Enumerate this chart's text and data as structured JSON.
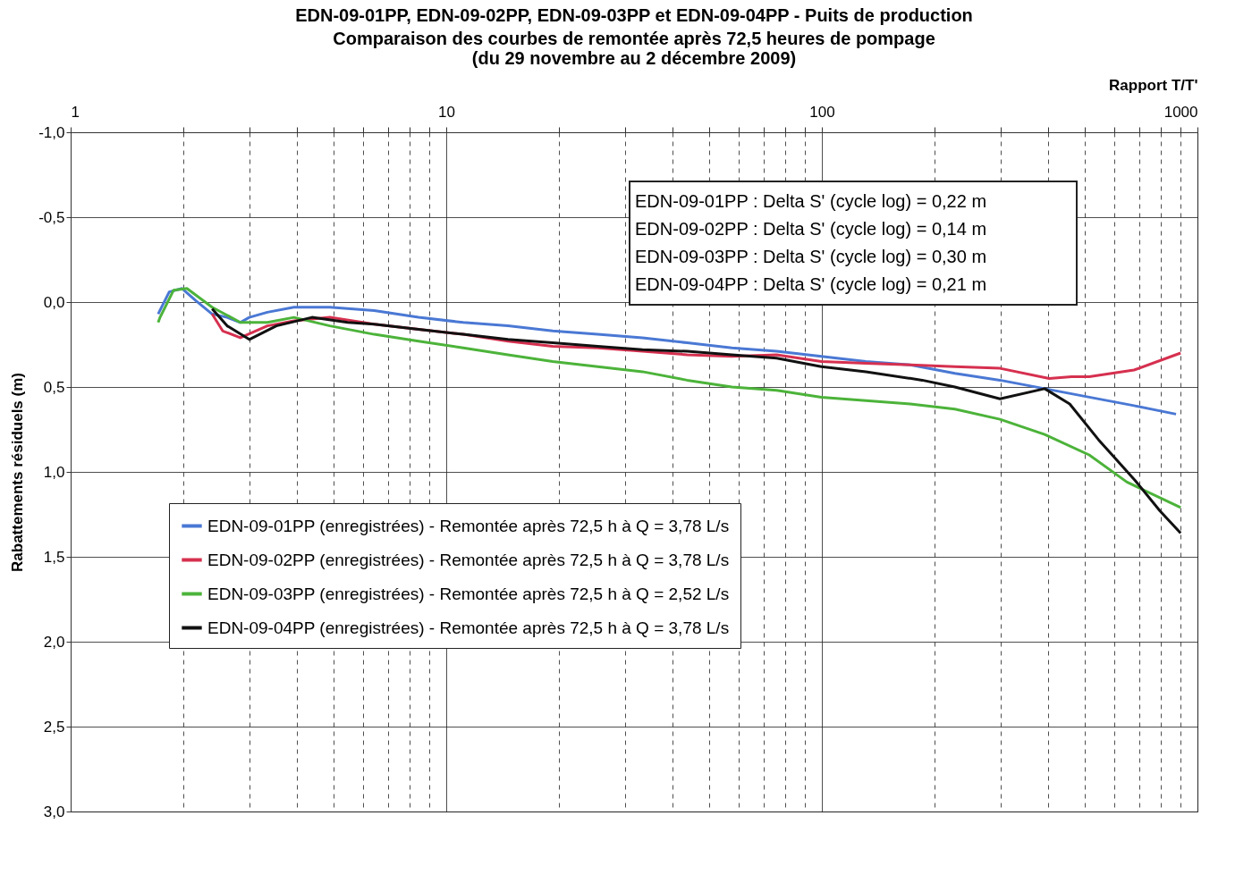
{
  "chart_data": {
    "type": "line",
    "title": "EDN-09-01PP, EDN-09-02PP, EDN-09-03PP et EDN-09-04PP - Puits de production",
    "subtitle": "Comparaison des courbes de remontée après 72,5 heures de pompage\n(du 29 novembre au 2 décembre 2009)",
    "xlabel": "Rapport T/T'",
    "ylabel": "Rabattements résiduels (m)",
    "log": "x",
    "xlim": [
      1,
      1000
    ],
    "xticks": [
      1,
      {
        "value": 2,
        "label": null
      },
      {
        "value": 3,
        "label": null
      },
      {
        "value": 4,
        "label": null
      },
      {
        "value": 5,
        "label": null
      },
      {
        "value": 6,
        "label": null
      },
      {
        "value": 7,
        "label": null
      },
      {
        "value": 8,
        "label": null
      },
      {
        "value": 9,
        "label": null
      },
      10,
      {
        "value": 20,
        "label": null
      },
      {
        "value": 30,
        "label": null
      },
      {
        "value": 40,
        "label": null
      },
      {
        "value": 50,
        "label": null
      },
      {
        "value": 60,
        "label": null
      },
      {
        "value": 70,
        "label": null
      },
      {
        "value": 80,
        "label": null
      },
      {
        "value": 90,
        "label": null
      },
      100,
      {
        "value": 200,
        "label": null
      },
      {
        "value": 300,
        "label": null
      },
      {
        "value": 400,
        "label": null
      },
      {
        "value": 500,
        "label": null
      },
      {
        "value": 600,
        "label": null
      },
      {
        "value": 700,
        "label": null
      },
      {
        "value": 800,
        "label": null
      },
      {
        "value": 900,
        "label": null
      },
      1000
    ],
    "ylim": [
      3.0,
      -1.0
    ],
    "yticks": [
      {
        "value": -1,
        "label": "-1,0"
      },
      {
        "value": -0.5,
        "label": "-0,5"
      },
      {
        "value": 0,
        "label": "0,0"
      },
      {
        "value": 0.5,
        "label": "0,5"
      },
      {
        "value": 1,
        "label": "1,0"
      },
      {
        "value": 1.5,
        "label": "1,5"
      },
      {
        "value": 2,
        "label": "2,0"
      },
      {
        "value": 2.5,
        "label": "2,5"
      },
      {
        "value": 3,
        "label": "3,0"
      }
    ],
    "grid": true,
    "legend": "bottom left",
    "annotations": [
      "EDN-09-01PP : Delta S' (cycle log) = 0,22 m",
      "EDN-09-02PP : Delta S' (cycle log) = 0,14 m",
      "EDN-09-03PP : Delta S' (cycle log) = 0,30 m",
      "EDN-09-04PP : Delta S' (cycle log) = 0,21 m"
    ],
    "series": [
      {
        "name": "EDN-09-01PP (enregistrées) - Remontée après 72,5 h à Q = 3,78 L/s",
        "color": "#4a78d4",
        "x": [
          1.71,
          1.83,
          1.98,
          2.15,
          2.38,
          2.61,
          2.83,
          2.99,
          3.34,
          3.93,
          4.9,
          6.43,
          8.44,
          11.1,
          14.6,
          19.2,
          25.3,
          33.3,
          43.8,
          57.6,
          75.8,
          99.7,
          131,
          172,
          226,
          298,
          392,
          515,
          678,
          877
        ],
        "values": [
          0.07,
          -0.06,
          -0.08,
          -0.01,
          0.07,
          0.09,
          0.12,
          0.09,
          0.06,
          0.03,
          0.03,
          0.05,
          0.09,
          0.12,
          0.14,
          0.17,
          0.19,
          0.21,
          0.24,
          0.27,
          0.29,
          0.32,
          0.35,
          0.37,
          0.42,
          0.46,
          0.51,
          0.56,
          0.61,
          0.66
        ]
      },
      {
        "name": "EDN-09-02PP (enregistrées) - Remontée après 72,5 h à Q = 3,78 L/s",
        "color": "#d6304f",
        "x": [
          2.38,
          2.54,
          2.83,
          3.34,
          3.93,
          4.9,
          6.43,
          8.44,
          11.1,
          14.6,
          19.2,
          25.3,
          33.3,
          43.8,
          57.6,
          75.8,
          99.7,
          131,
          172,
          226,
          298,
          403,
          462,
          515,
          678,
          902
        ],
        "values": [
          0.07,
          0.17,
          0.21,
          0.14,
          0.11,
          0.09,
          0.13,
          0.16,
          0.19,
          0.23,
          0.26,
          0.27,
          0.29,
          0.31,
          0.32,
          0.31,
          0.35,
          0.36,
          0.37,
          0.38,
          0.39,
          0.45,
          0.44,
          0.44,
          0.4,
          0.3
        ]
      },
      {
        "name": "EDN-09-03PP (enregistrées) - Remontée après 72,5 h à Q = 2,52 L/s",
        "color": "#4cb33a",
        "x": [
          1.71,
          1.73,
          1.88,
          2.04,
          2.38,
          2.83,
          3.34,
          3.93,
          4.9,
          6.43,
          8.44,
          11.1,
          14.6,
          19.2,
          25.3,
          33.3,
          43.8,
          57.6,
          75.8,
          99.7,
          131,
          172,
          226,
          298,
          392,
          515,
          649,
          902
        ],
        "values": [
          0.12,
          0.09,
          -0.07,
          -0.08,
          0.03,
          0.12,
          0.12,
          0.09,
          0.14,
          0.19,
          0.23,
          0.27,
          0.31,
          0.35,
          0.38,
          0.41,
          0.46,
          0.5,
          0.52,
          0.56,
          0.58,
          0.6,
          0.63,
          0.69,
          0.78,
          0.9,
          1.06,
          1.21
        ]
      },
      {
        "name": "EDN-09-04PP (enregistrées) - Remontée après 72,5 h à Q = 3,78 L/s",
        "color": "#111111",
        "x": [
          2.38,
          2.61,
          2.99,
          3.53,
          4.39,
          5.47,
          6.43,
          8.44,
          11.1,
          14.6,
          19.2,
          25.3,
          33.3,
          43.8,
          57.6,
          75.8,
          99.7,
          131,
          185,
          226,
          298,
          392,
          457,
          545,
          682,
          795,
          902
        ],
        "values": [
          0.04,
          0.14,
          0.22,
          0.14,
          0.09,
          0.12,
          0.13,
          0.16,
          0.19,
          0.22,
          0.24,
          0.26,
          0.28,
          0.29,
          0.31,
          0.33,
          0.38,
          0.41,
          0.46,
          0.5,
          0.57,
          0.51,
          0.6,
          0.81,
          1.05,
          1.23,
          1.36
        ]
      }
    ]
  }
}
